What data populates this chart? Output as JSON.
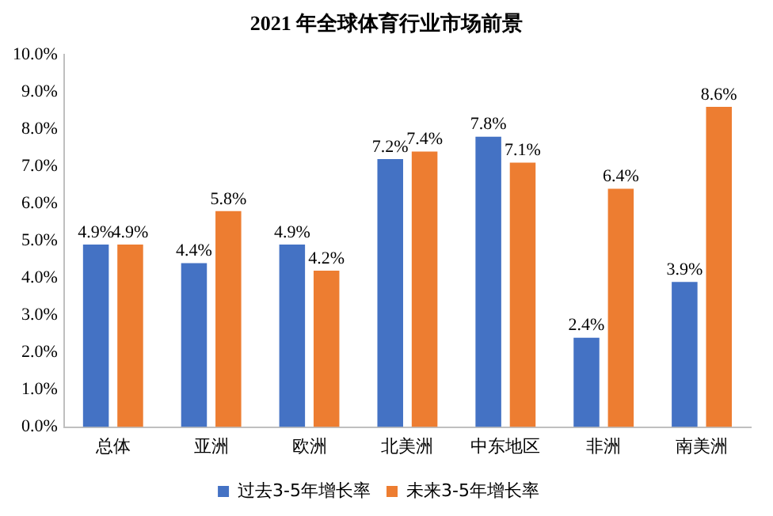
{
  "chart_data": {
    "type": "bar",
    "title": "2021 年全球体育行业市场前景",
    "categories": [
      "总体",
      "亚洲",
      "欧洲",
      "北美洲",
      "中东地区",
      "非洲",
      "南美洲"
    ],
    "series": [
      {
        "name": "过去3-5年增长率",
        "color": "#4472c4",
        "values": [
          4.9,
          4.4,
          4.9,
          7.2,
          7.8,
          2.4,
          3.9
        ],
        "value_labels": [
          "4.9%",
          "4.4%",
          "4.9%",
          "7.2%",
          "7.8%",
          "2.4%",
          "3.9%"
        ]
      },
      {
        "name": "未来3-5年增长率",
        "color": "#ed7d31",
        "values": [
          4.9,
          5.8,
          4.2,
          7.4,
          7.1,
          6.4,
          8.6
        ],
        "value_labels": [
          "4.9%",
          "5.8%",
          "4.2%",
          "7.4%",
          "7.1%",
          "6.4%",
          "8.6%"
        ]
      }
    ],
    "ylim": [
      0,
      10
    ],
    "yticks": [
      {
        "value": 0,
        "label": "0.0%"
      },
      {
        "value": 1,
        "label": "1.0%"
      },
      {
        "value": 2,
        "label": "2.0%"
      },
      {
        "value": 3,
        "label": "3.0%"
      },
      {
        "value": 4,
        "label": "4.0%"
      },
      {
        "value": 5,
        "label": "5.0%"
      },
      {
        "value": 6,
        "label": "6.0%"
      },
      {
        "value": 7,
        "label": "7.0%"
      },
      {
        "value": 8,
        "label": "8.0%"
      },
      {
        "value": 9,
        "label": "9.0%"
      },
      {
        "value": 10,
        "label": "10.0%"
      }
    ],
    "grid": false,
    "legend": "bottom"
  }
}
